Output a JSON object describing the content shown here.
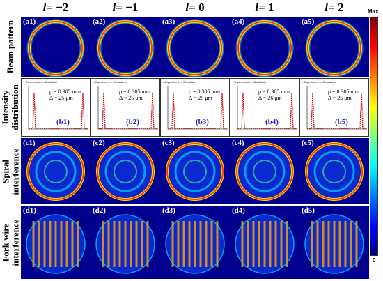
{
  "columns": [
    {
      "prefix": "l",
      "value": "= −2"
    },
    {
      "prefix": "l",
      "value": "= −1"
    },
    {
      "prefix": "l",
      "value": "= 0"
    },
    {
      "prefix": "l",
      "value": "= 1"
    },
    {
      "prefix": "l",
      "value": "= 2"
    }
  ],
  "rows": [
    {
      "label": "Beam pattern"
    },
    {
      "label": "Intensity distribution"
    },
    {
      "label": "Spiral interference"
    },
    {
      "label": "Fork wire interference"
    }
  ],
  "beam_tags": [
    "(a1)",
    "(a2)",
    "(a3)",
    "(a4)",
    "(a5)"
  ],
  "plot_panels": [
    {
      "tag": "(b1)",
      "rho": "ρ = 0.305 mm",
      "delta": "Δ = 25 μm"
    },
    {
      "tag": "(b2)",
      "rho": "ρ = 0.305 mm",
      "delta": "Δ = 25 μm"
    },
    {
      "tag": "(b3)",
      "rho": "ρ = 0.305 mm",
      "delta": "Δ = 25 μm"
    },
    {
      "tag": "(b4)",
      "rho": "ρ = 0.305 mm",
      "delta": "Δ = 26 μm"
    },
    {
      "tag": "(b5)",
      "rho": "ρ = 0.305 mm",
      "delta": "Δ = 25 μm"
    }
  ],
  "legend": {
    "experiment": "Experiment",
    "simulation": "Simulation"
  },
  "spiral_tags": [
    "(c1)",
    "(c2)",
    "(c3)",
    "(c4)",
    "(c5)"
  ],
  "fork_tags": [
    "(d1)",
    "(d2)",
    "(d3)",
    "(d4)",
    "(d5)"
  ],
  "colorbar": {
    "max_label": "Max",
    "min_label": "0",
    "colormap": "jet"
  },
  "colors": {
    "ring": "#ff3b00",
    "background": "#00008f",
    "simulation_line": "#cc0000",
    "tag_text": "#2222cc"
  }
}
